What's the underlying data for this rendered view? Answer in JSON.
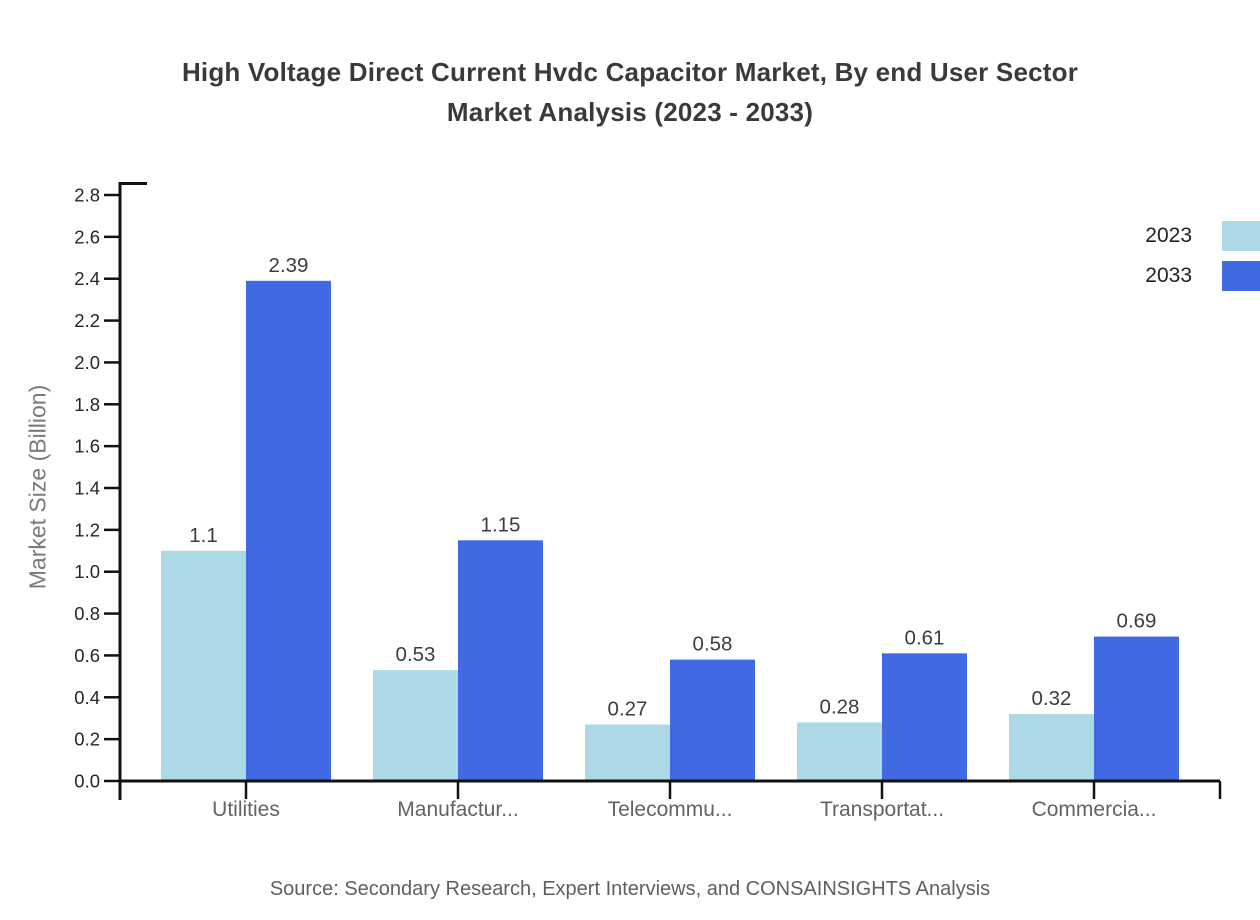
{
  "title": {
    "lines": [
      "High Voltage Direct Current Hvdc Capacitor Market, By end User Sector",
      "Market Analysis (2023 - 2033)"
    ]
  },
  "legend": {
    "items": [
      {
        "label": "2023",
        "color": "#ADD8E6"
      },
      {
        "label": "2033",
        "color": "#4169E1"
      }
    ]
  },
  "chart_data": {
    "type": "bar",
    "title": "High Voltage Direct Current Hvdc Capacitor Market, By end User Sector Market Analysis (2023 - 2033)",
    "categories": [
      "Utilities",
      "Manufactur...",
      "Telecommu...",
      "Transportat...",
      "Commercia..."
    ],
    "series": [
      {
        "name": "2023",
        "color": "#ADD8E6",
        "values": [
          1.1,
          0.53,
          0.27,
          0.28,
          0.32
        ]
      },
      {
        "name": "2033",
        "color": "#4169E1",
        "values": [
          2.39,
          1.15,
          0.58,
          0.61,
          0.69
        ]
      }
    ],
    "xlabel": "",
    "ylabel": "Market Size (Billion)",
    "ylim": [
      0,
      2.8
    ],
    "ytick_step": 0.2,
    "grid": false,
    "legend_position": "top-right",
    "value_labels_shown": true
  },
  "footer": {
    "source": "Source: Secondary Research, Expert Interviews, and CONSAINSIGHTS Analysis"
  },
  "colors": {
    "axis": "#111111",
    "title_text": "#3a3a3a",
    "tick_label": "#262626",
    "category_label": "#636363",
    "value_label": "#3d3d3d",
    "axis_title": "#7a7a7a",
    "source_text": "#5f5f5f"
  }
}
